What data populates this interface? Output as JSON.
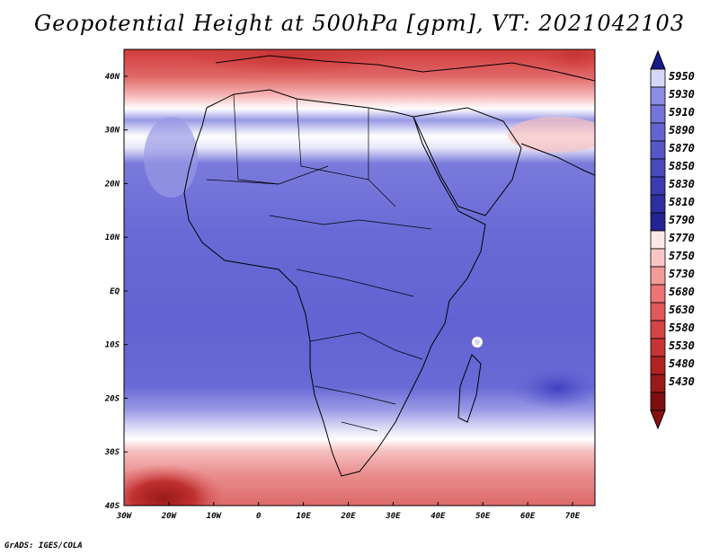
{
  "title": "Geopotential Height at 500hPa [gpm], VT: 2021042103",
  "credit": "GrADS: IGES/COLA",
  "map": {
    "lon_labels": [
      "30W",
      "20W",
      "10W",
      "0",
      "10E",
      "20E",
      "30E",
      "40E",
      "50E",
      "60E",
      "70E"
    ],
    "lat_labels": [
      "40N",
      "30N",
      "20N",
      "10N",
      "EQ",
      "10S",
      "20S",
      "30S",
      "40S"
    ]
  },
  "colorbar": {
    "levels": [
      "5950",
      "5930",
      "5910",
      "5890",
      "5870",
      "5850",
      "5830",
      "5810",
      "5790",
      "5770",
      "5750",
      "5730",
      "5680",
      "5630",
      "5580",
      "5530",
      "5480",
      "5430"
    ],
    "colors": [
      "#d6d6f6",
      "#8c8ce4",
      "#7474da",
      "#6464d0",
      "#5656c6",
      "#4a4abc",
      "#3c3cb2",
      "#2e2ea0",
      "#232393",
      "#fde8e8",
      "#f9c6c6",
      "#f39a9a",
      "#ec7474",
      "#e05858",
      "#d44444",
      "#c83434",
      "#b22222",
      "#9a1a1a",
      "#7e1010"
    ],
    "max_color": "#1a1a8a",
    "min_color": "#8a1010"
  },
  "field": {
    "lat_range": [
      -40,
      45
    ],
    "lon_range": [
      -30,
      75
    ],
    "summary_bands": [
      {
        "lat_from": 45,
        "lat_to": 38,
        "color": "#d44848"
      },
      {
        "lat_from": 38,
        "lat_to": 34,
        "color": "#f3a4a4"
      },
      {
        "lat_from": 34,
        "lat_to": 30,
        "color": "#a8a8ec"
      },
      {
        "lat_from": 30,
        "lat_to": 26,
        "color": "#ffffff"
      },
      {
        "lat_from": 26,
        "lat_to": -25,
        "color": "#6a6ad6"
      },
      {
        "lat_from": -25,
        "lat_to": -30,
        "color": "#a6a6e8"
      },
      {
        "lat_from": -30,
        "lat_to": -33,
        "color": "#ffffff"
      },
      {
        "lat_from": -33,
        "lat_to": -40,
        "color": "#e88a8a"
      }
    ]
  }
}
